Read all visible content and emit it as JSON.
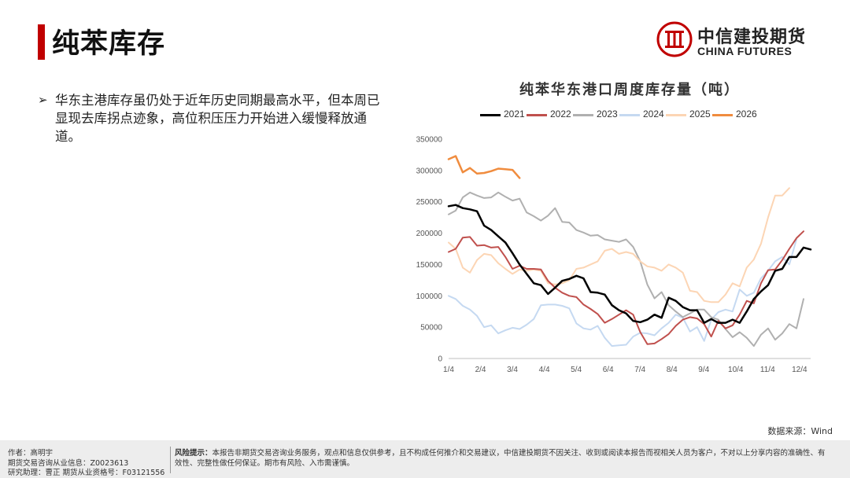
{
  "page": {
    "title": "纯苯库存"
  },
  "logo": {
    "cn": "中信建投期货",
    "en": "CHINA FUTURES"
  },
  "bullet": {
    "text": "华东主港库存虽仍处于近年历史同期最高水平，但本周已显现去库拐点迹象，高位积压压力开始进入缓慢释放通道。"
  },
  "source": "数据来源：Wind",
  "footer": {
    "author": "作者：高明宇",
    "license": "期货交易咨询从业信息：Z0023613",
    "assistant": "研究助理：曹正  期货从业资格号：F03121556",
    "risk_label": "风险提示：",
    "risk_text": "本报告非期货交易咨询业务服务，观点和信息仅供参考，且不构成任何推介和交易建议，中信建投期货不因关注、收到或阅读本报告而视相关人员为客户，不对以上分享内容的准确性、有效性、完整性做任何保证。期市有风险、入市需谨慎。"
  },
  "colors": {
    "accent": "#c00000"
  },
  "chart_data": {
    "type": "line",
    "title": "纯苯华东港口周度库存量（吨）",
    "ylim": [
      0,
      350000
    ],
    "yticks": [
      0,
      50000,
      100000,
      150000,
      200000,
      250000,
      300000,
      350000
    ],
    "xticks": [
      "1/4",
      "2/4",
      "3/4",
      "4/4",
      "5/4",
      "6/4",
      "7/4",
      "8/4",
      "9/4",
      "10/4",
      "11/4",
      "12/4"
    ],
    "week_count": 52,
    "grid": false,
    "legend": "top",
    "series": [
      {
        "name": "2021",
        "color": "#000000",
        "width": 2.5,
        "values": [
          243000,
          245000,
          240000,
          238000,
          235000,
          212000,
          205000,
          195000,
          185000,
          168000,
          150000,
          135000,
          120000,
          117000,
          103000,
          113000,
          124000,
          127000,
          132000,
          128000,
          106000,
          105000,
          102000,
          85000,
          77000,
          72000,
          60000,
          58000,
          62000,
          70000,
          65000,
          97000,
          92000,
          82000,
          77000,
          77000,
          57000,
          63000,
          57000,
          57000,
          62000,
          57000,
          75000,
          95000,
          107000,
          117000,
          140000,
          143000,
          162000,
          162000,
          177000,
          174000
        ]
      },
      {
        "name": "2022",
        "color": "#c0504d",
        "width": 2,
        "values": [
          170000,
          175000,
          193000,
          194000,
          180000,
          181000,
          177000,
          178000,
          162000,
          143000,
          148000,
          143000,
          143000,
          142000,
          124000,
          113000,
          105000,
          100000,
          98000,
          86000,
          79000,
          71000,
          57000,
          63000,
          70000,
          77000,
          70000,
          42000,
          23000,
          24000,
          31000,
          39000,
          52000,
          62000,
          66000,
          64000,
          55000,
          35000,
          60000,
          48000,
          53000,
          70000,
          92000,
          88000,
          120000,
          141000,
          142000,
          157000,
          175000,
          192000,
          203000,
          null
        ]
      },
      {
        "name": "2023",
        "color": "#b0b0b0",
        "width": 2,
        "values": [
          230000,
          236000,
          257000,
          265000,
          260000,
          256000,
          257000,
          265000,
          258000,
          252000,
          255000,
          233000,
          227000,
          220000,
          228000,
          240000,
          218000,
          217000,
          205000,
          201000,
          196000,
          197000,
          190000,
          188000,
          186000,
          190000,
          178000,
          155000,
          118000,
          96000,
          106000,
          85000,
          75000,
          66000,
          72000,
          78000,
          78000,
          66000,
          62000,
          47000,
          34000,
          42000,
          33000,
          20000,
          38000,
          48000,
          30000,
          40000,
          55000,
          48000,
          95000,
          null
        ]
      },
      {
        "name": "2024",
        "color": "#c5d9f1",
        "width": 2,
        "values": [
          100000,
          95000,
          84000,
          78000,
          68000,
          50000,
          53000,
          40000,
          45000,
          49000,
          47000,
          54000,
          63000,
          85000,
          86000,
          86000,
          84000,
          80000,
          56000,
          48000,
          46000,
          52000,
          33000,
          20000,
          21000,
          22000,
          35000,
          41000,
          40000,
          37000,
          48000,
          57000,
          70000,
          65000,
          43000,
          50000,
          28000,
          62000,
          74000,
          78000,
          75000,
          110000,
          100000,
          105000,
          128000,
          140000,
          155000,
          162000,
          150000,
          190000,
          null,
          null
        ]
      },
      {
        "name": "2025",
        "color": "#fcd5b4",
        "width": 2,
        "values": [
          185000,
          175000,
          145000,
          137000,
          157000,
          167000,
          165000,
          152000,
          143000,
          135000,
          142000,
          140000,
          142000,
          140000,
          120000,
          118000,
          120000,
          125000,
          143000,
          145000,
          150000,
          155000,
          172000,
          175000,
          167000,
          170000,
          167000,
          155000,
          147000,
          145000,
          140000,
          150000,
          145000,
          137000,
          108000,
          106000,
          92000,
          90000,
          90000,
          102000,
          120000,
          115000,
          145000,
          158000,
          183000,
          225000,
          260000,
          260000,
          272000,
          null,
          null,
          null
        ]
      },
      {
        "name": "2026",
        "color": "#f08c3e",
        "width": 2.5,
        "values": [
          318000,
          323000,
          297000,
          304000,
          295000,
          296000,
          299000,
          303000,
          302000,
          301000,
          288000,
          null,
          null,
          null,
          null,
          null,
          null,
          null,
          null,
          null,
          null,
          null,
          null,
          null,
          null,
          null,
          null,
          null,
          null,
          null,
          null,
          null,
          null,
          null,
          null,
          null,
          null,
          null,
          null,
          null,
          null,
          null,
          null,
          null,
          null,
          null,
          null,
          null,
          null,
          null,
          null,
          null
        ]
      }
    ]
  }
}
